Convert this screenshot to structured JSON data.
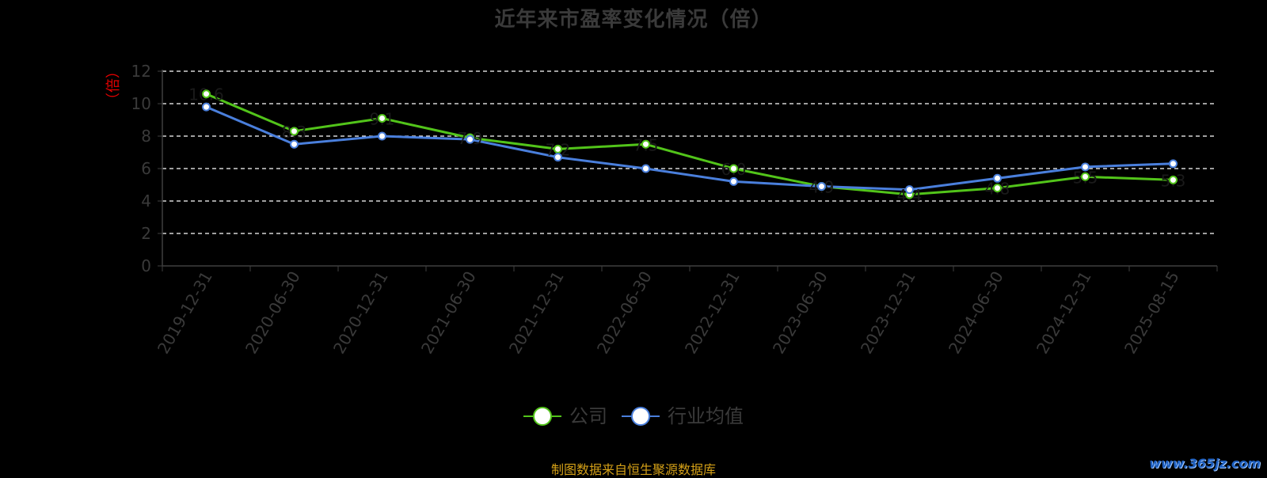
{
  "title": "近年来市盈率变化情况（倍）",
  "y_unit": "（倍）",
  "source_note": "制图数据来自恒生聚源数据库",
  "watermark": "www.365jz.com",
  "colors": {
    "background": "#000000",
    "company": "#52c41a",
    "industry": "#4a7fdc",
    "grid": "#ffffff",
    "axis": "#3f3f3f",
    "axis_text": "#3a3a3a",
    "unit_text": "#e60000",
    "source_text": "#d4a017"
  },
  "legend": {
    "company": "公司",
    "industry": "行业均值"
  },
  "chart_data": {
    "type": "line",
    "title": "近年来市盈率变化情况（倍）",
    "xlabel": "",
    "ylabel": "（倍）",
    "categories": [
      "2019-12-31",
      "2020-06-30",
      "2020-12-31",
      "2021-06-30",
      "2021-12-31",
      "2022-06-30",
      "2022-12-31",
      "2023-06-30",
      "2023-12-31",
      "2024-06-30",
      "2024-12-31",
      "2025-08-15"
    ],
    "series": [
      {
        "name": "公司",
        "values": [
          10.6,
          8.3,
          9.1,
          7.9,
          7.2,
          7.5,
          6.0,
          4.9,
          4.4,
          4.8,
          5.5,
          5.3
        ],
        "data_labels": [
          "10.6",
          "8.3",
          "9.1",
          "7.9",
          "7.2",
          "7.5",
          "6.0",
          "4.9",
          "4.4",
          "4.8",
          "5.5",
          "5.3"
        ]
      },
      {
        "name": "行业均值",
        "values": [
          9.8,
          7.5,
          8.0,
          7.8,
          6.7,
          6.0,
          5.2,
          4.9,
          4.7,
          5.4,
          6.1,
          6.3
        ]
      }
    ],
    "ylim": [
      0,
      12
    ],
    "yticks": [
      0,
      2,
      4,
      6,
      8,
      10,
      12
    ],
    "grid": true,
    "legend_position": "bottom"
  }
}
